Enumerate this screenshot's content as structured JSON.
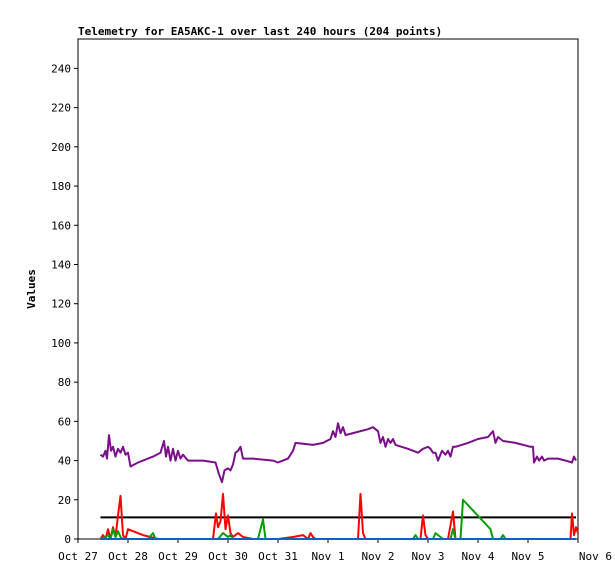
{
  "chart_data": {
    "type": "line",
    "title": "Telemetry for EA5AKC-1 over last 240 hours (204 points)",
    "xlabel": "",
    "ylabel": "Values",
    "x_unit": "days since Oct 27 00:00",
    "xlim": [
      0,
      10
    ],
    "ylim": [
      0,
      255
    ],
    "x_tick_labels": [
      "Oct 27",
      "Oct 28",
      "Oct 29",
      "Oct 30",
      "Oct 31",
      "Nov 1",
      "Nov 2",
      "Nov 3",
      "Nov 4",
      "Nov 5",
      "Nov 6"
    ],
    "y_ticks": [
      0,
      20,
      40,
      60,
      80,
      100,
      120,
      140,
      160,
      180,
      200,
      220,
      240
    ],
    "grid": false,
    "series": [
      {
        "color": "#7b0f8a",
        "points": [
          [
            0.45,
            43
          ],
          [
            0.5,
            42
          ],
          [
            0.55,
            45
          ],
          [
            0.58,
            41
          ],
          [
            0.62,
            53
          ],
          [
            0.66,
            45
          ],
          [
            0.7,
            47
          ],
          [
            0.75,
            42
          ],
          [
            0.8,
            46
          ],
          [
            0.85,
            44
          ],
          [
            0.9,
            47
          ],
          [
            0.95,
            43
          ],
          [
            1.0,
            44
          ],
          [
            1.05,
            37
          ],
          [
            1.2,
            39
          ],
          [
            1.5,
            42
          ],
          [
            1.65,
            44
          ],
          [
            1.72,
            50
          ],
          [
            1.76,
            42
          ],
          [
            1.8,
            47
          ],
          [
            1.85,
            40
          ],
          [
            1.9,
            46
          ],
          [
            1.95,
            40
          ],
          [
            2.0,
            45
          ],
          [
            2.05,
            41
          ],
          [
            2.1,
            43
          ],
          [
            2.2,
            40
          ],
          [
            2.5,
            40
          ],
          [
            2.75,
            39
          ],
          [
            2.82,
            33
          ],
          [
            2.88,
            29
          ],
          [
            2.93,
            35
          ],
          [
            3.0,
            36
          ],
          [
            3.05,
            35
          ],
          [
            3.1,
            38
          ],
          [
            3.15,
            44
          ],
          [
            3.2,
            45
          ],
          [
            3.25,
            47
          ],
          [
            3.3,
            41
          ],
          [
            3.5,
            41
          ],
          [
            3.9,
            40
          ],
          [
            4.0,
            39
          ],
          [
            4.1,
            40
          ],
          [
            4.2,
            41
          ],
          [
            4.3,
            45
          ],
          [
            4.35,
            49
          ],
          [
            4.7,
            48
          ],
          [
            4.9,
            49
          ],
          [
            5.05,
            51
          ],
          [
            5.1,
            55
          ],
          [
            5.15,
            52
          ],
          [
            5.2,
            59
          ],
          [
            5.25,
            54
          ],
          [
            5.3,
            57
          ],
          [
            5.35,
            53
          ],
          [
            5.5,
            54
          ],
          [
            5.8,
            56
          ],
          [
            5.9,
            57
          ],
          [
            6.0,
            55
          ],
          [
            6.05,
            49
          ],
          [
            6.1,
            52
          ],
          [
            6.15,
            47
          ],
          [
            6.2,
            51
          ],
          [
            6.25,
            49
          ],
          [
            6.3,
            51
          ],
          [
            6.35,
            48
          ],
          [
            6.6,
            46
          ],
          [
            6.8,
            44
          ],
          [
            6.9,
            46
          ],
          [
            7.0,
            47
          ],
          [
            7.05,
            46
          ],
          [
            7.1,
            44
          ],
          [
            7.15,
            44
          ],
          [
            7.2,
            40
          ],
          [
            7.28,
            45
          ],
          [
            7.35,
            43
          ],
          [
            7.4,
            45
          ],
          [
            7.45,
            42
          ],
          [
            7.5,
            47
          ],
          [
            7.55,
            47
          ],
          [
            7.8,
            49
          ],
          [
            8.0,
            51
          ],
          [
            8.2,
            52
          ],
          [
            8.3,
            55
          ],
          [
            8.35,
            49
          ],
          [
            8.4,
            52
          ],
          [
            8.45,
            51
          ],
          [
            8.5,
            50
          ],
          [
            8.75,
            49
          ],
          [
            9.05,
            47
          ],
          [
            9.1,
            47
          ],
          [
            9.12,
            39
          ],
          [
            9.18,
            42
          ],
          [
            9.22,
            40
          ],
          [
            9.28,
            42
          ],
          [
            9.32,
            40
          ],
          [
            9.4,
            41
          ],
          [
            9.6,
            41
          ],
          [
            9.75,
            40
          ],
          [
            9.88,
            39
          ],
          [
            9.92,
            42
          ],
          [
            9.96,
            40
          ]
        ]
      },
      {
        "color": "#000000",
        "points": [
          [
            0.45,
            11
          ],
          [
            9.96,
            11
          ]
        ]
      },
      {
        "color": "#ff0000",
        "points": [
          [
            0.45,
            0
          ],
          [
            0.5,
            2
          ],
          [
            0.55,
            0
          ],
          [
            0.6,
            5
          ],
          [
            0.65,
            0
          ],
          [
            0.7,
            6
          ],
          [
            0.75,
            1
          ],
          [
            0.8,
            12
          ],
          [
            0.85,
            22
          ],
          [
            0.9,
            2
          ],
          [
            0.95,
            0
          ],
          [
            1.0,
            5
          ],
          [
            1.3,
            2
          ],
          [
            1.6,
            0
          ],
          [
            2.6,
            0
          ],
          [
            2.7,
            0
          ],
          [
            2.76,
            13
          ],
          [
            2.8,
            6
          ],
          [
            2.85,
            9
          ],
          [
            2.9,
            23
          ],
          [
            2.95,
            5
          ],
          [
            3.0,
            12
          ],
          [
            3.05,
            3
          ],
          [
            3.1,
            1
          ],
          [
            3.2,
            3
          ],
          [
            3.3,
            1
          ],
          [
            3.5,
            0
          ],
          [
            4.0,
            0
          ],
          [
            4.3,
            1
          ],
          [
            4.5,
            2
          ],
          [
            4.6,
            0
          ],
          [
            4.65,
            3
          ],
          [
            4.7,
            1
          ],
          [
            4.75,
            0
          ],
          [
            5.5,
            0
          ],
          [
            5.6,
            0
          ],
          [
            5.65,
            23
          ],
          [
            5.7,
            3
          ],
          [
            5.75,
            0
          ],
          [
            6.2,
            0
          ],
          [
            6.85,
            0
          ],
          [
            6.9,
            12
          ],
          [
            6.95,
            2
          ],
          [
            7.0,
            0
          ],
          [
            7.4,
            0
          ],
          [
            7.5,
            14
          ],
          [
            7.55,
            0
          ],
          [
            8.4,
            0
          ],
          [
            9.85,
            0
          ],
          [
            9.88,
            13
          ],
          [
            9.92,
            2
          ],
          [
            9.96,
            6
          ],
          [
            10.0,
            3
          ]
        ]
      },
      {
        "color": "#00a000",
        "points": [
          [
            0.45,
            0
          ],
          [
            0.55,
            1
          ],
          [
            0.6,
            2
          ],
          [
            0.65,
            0
          ],
          [
            0.7,
            5
          ],
          [
            0.75,
            1
          ],
          [
            0.8,
            4
          ],
          [
            0.85,
            1
          ],
          [
            0.9,
            0
          ],
          [
            1.2,
            0
          ],
          [
            1.4,
            0
          ],
          [
            1.5,
            3
          ],
          [
            1.55,
            0
          ],
          [
            2.8,
            0
          ],
          [
            2.9,
            3
          ],
          [
            3.0,
            1
          ],
          [
            3.05,
            2
          ],
          [
            3.1,
            0
          ],
          [
            3.6,
            0
          ],
          [
            3.7,
            10
          ],
          [
            3.75,
            0
          ],
          [
            6.7,
            0
          ],
          [
            6.75,
            2
          ],
          [
            6.8,
            0
          ],
          [
            7.1,
            0
          ],
          [
            7.15,
            3
          ],
          [
            7.3,
            0
          ],
          [
            7.45,
            0
          ],
          [
            7.5,
            5
          ],
          [
            7.55,
            0
          ],
          [
            7.65,
            0
          ],
          [
            7.7,
            20
          ],
          [
            8.25,
            5
          ],
          [
            8.3,
            0
          ],
          [
            8.45,
            0
          ],
          [
            8.5,
            2
          ],
          [
            8.55,
            0
          ],
          [
            9.96,
            0
          ]
        ]
      },
      {
        "color": "#1060c0",
        "points": [
          [
            0.45,
            0
          ],
          [
            9.96,
            0
          ]
        ]
      }
    ]
  }
}
